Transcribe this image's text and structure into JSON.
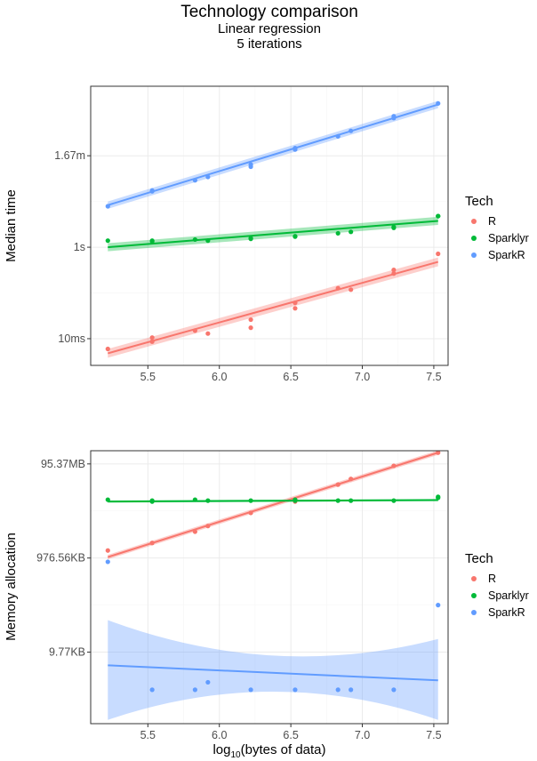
{
  "title": "Technology comparison",
  "subtitle_line1": "Linear regression",
  "subtitle_line2": "5 iterations",
  "xlabel_main": "log",
  "xlabel_sub": "10",
  "xlabel_rest": "(bytes of data)",
  "colors": {
    "R": "#f8766d",
    "Sparklyr": "#00ba38",
    "SparkR": "#619cff"
  },
  "chart_data": [
    {
      "type": "scatter",
      "ylabel": "Median time",
      "xlim": [
        5.1,
        7.6
      ],
      "ylim": [
        0.27,
        7.9
      ],
      "x_ticks": [
        5.5,
        6.0,
        6.5,
        7.0,
        7.5
      ],
      "x_tick_labels": [
        "5.5",
        "6.0",
        "6.5",
        "7.0",
        "7.5"
      ],
      "y_ticks": [
        1,
        3.5,
        6
      ],
      "y_tick_labels": [
        "10ms",
        "1s",
        "1.67m"
      ],
      "y_scale_note": "log10 seconds: 10ms=-2, 1s=0, 1.67m=2",
      "legend_title": "Tech",
      "legend_labels": [
        "R",
        "Sparklyr",
        "SparkR"
      ],
      "series": [
        {
          "name": "R",
          "x": [
            5.22,
            5.53,
            5.53,
            5.83,
            5.92,
            6.22,
            6.22,
            6.53,
            6.53,
            6.83,
            6.92,
            7.22,
            7.22,
            7.53
          ],
          "y": [
            0.72,
            0.92,
            1.03,
            1.22,
            1.14,
            1.52,
            1.3,
            1.83,
            1.98,
            2.38,
            2.34,
            2.78,
            2.88,
            3.32
          ],
          "fit": [
            0.6,
            3.1
          ],
          "band": 0.12
        },
        {
          "name": "Sparklyr",
          "x": [
            5.22,
            5.53,
            5.53,
            5.83,
            5.92,
            6.22,
            6.22,
            6.53,
            6.53,
            6.83,
            6.92,
            7.22,
            7.22,
            7.53,
            7.53
          ],
          "y": [
            3.68,
            3.66,
            3.68,
            3.71,
            3.68,
            3.75,
            3.73,
            3.8,
            3.79,
            3.88,
            3.92,
            4.05,
            4.03,
            4.35,
            4.35
          ],
          "fit": [
            3.5,
            4.22
          ],
          "band": 0.11
        },
        {
          "name": "SparkR",
          "x": [
            5.22,
            5.53,
            5.53,
            5.83,
            5.92,
            6.22,
            6.22,
            6.53,
            6.53,
            6.83,
            6.92,
            7.22,
            7.22,
            7.53
          ],
          "y": [
            4.62,
            5.03,
            5.05,
            5.33,
            5.42,
            5.76,
            5.7,
            6.21,
            6.17,
            6.53,
            6.68,
            7.03,
            7.08,
            7.43
          ],
          "fit": [
            4.65,
            7.4
          ],
          "band": 0.1
        }
      ]
    },
    {
      "type": "scatter",
      "ylabel": "Memory allocation",
      "xlim": [
        5.1,
        7.6
      ],
      "ylim": [
        -3.8,
        10.7
      ],
      "x_ticks": [
        5.5,
        6.0,
        6.5,
        7.0,
        7.5
      ],
      "x_tick_labels": [
        "5.5",
        "6.0",
        "6.5",
        "7.0",
        "7.5"
      ],
      "y_ticks": [
        0,
        5,
        10
      ],
      "y_tick_labels": [
        "9.77KB",
        "976.56KB",
        "95.37MB"
      ],
      "y_scale_note": "log10 bytes: 9.77KB=4, 976.56KB=6, 95.37MB=8",
      "legend_title": "Tech",
      "legend_labels": [
        "R",
        "Sparklyr",
        "SparkR"
      ],
      "series": [
        {
          "name": "R",
          "x": [
            5.22,
            5.53,
            5.83,
            5.92,
            6.22,
            6.53,
            6.83,
            6.92,
            7.22,
            7.53
          ],
          "y": [
            5.4,
            5.8,
            6.4,
            6.7,
            7.4,
            8.0,
            8.9,
            9.2,
            9.9,
            10.6
          ],
          "fit": [
            5.05,
            10.6
          ],
          "band": 0.12
        },
        {
          "name": "Sparklyr",
          "x": [
            5.22,
            5.53,
            5.53,
            5.83,
            5.92,
            6.22,
            6.53,
            6.53,
            6.83,
            6.92,
            7.22,
            7.53,
            7.53
          ],
          "y": [
            8.1,
            8.0,
            8.05,
            8.1,
            8.05,
            8.05,
            8.1,
            8.05,
            8.05,
            8.05,
            8.05,
            8.2,
            8.25
          ],
          "fit": [
            8.0,
            8.08
          ],
          "band": 0.06
        },
        {
          "name": "SparkR",
          "x": [
            5.22,
            5.53,
            5.83,
            5.92,
            6.22,
            6.53,
            6.83,
            6.92,
            7.22,
            7.53
          ],
          "y": [
            4.8,
            -2.0,
            -2.0,
            -1.6,
            -2.0,
            -2.0,
            -2.0,
            -2.0,
            -2.0,
            2.5
          ],
          "fit": [
            -0.7,
            -1.5
          ],
          "band_lo": [
            -3.6,
            -3.6
          ],
          "band_hi": [
            1.7,
            0.7
          ]
        }
      ]
    }
  ]
}
